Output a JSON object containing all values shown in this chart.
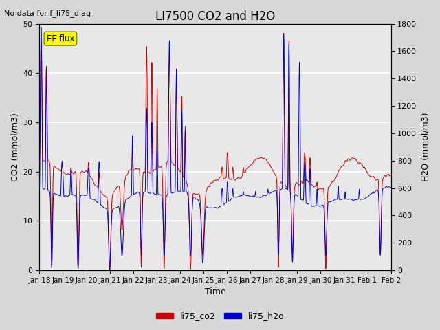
{
  "title": "LI7500 CO2 and H2O",
  "subtitle": "No data for f_li75_diag",
  "xlabel": "Time",
  "ylabel_left": "CO2 (mmol/m3)",
  "ylabel_right": "H2O (mmol/m3)",
  "ylim_left": [
    0,
    50
  ],
  "ylim_right": [
    0,
    1800
  ],
  "legend_labels": [
    "li75_co2",
    "li75_h2o"
  ],
  "legend_colors": [
    "#cc0000",
    "#0000cc"
  ],
  "co2_color": "#cc0000",
  "h2o_color": "#0000cc",
  "ee_flux_label": "EE flux",
  "ee_flux_color": "#ffff00",
  "ee_flux_edge": "#888800",
  "bg_color": "#d8d8d8",
  "plot_bg_color": "#e8e8e8",
  "grid_color": "#ffffff",
  "n_days": 15,
  "seed": 7
}
